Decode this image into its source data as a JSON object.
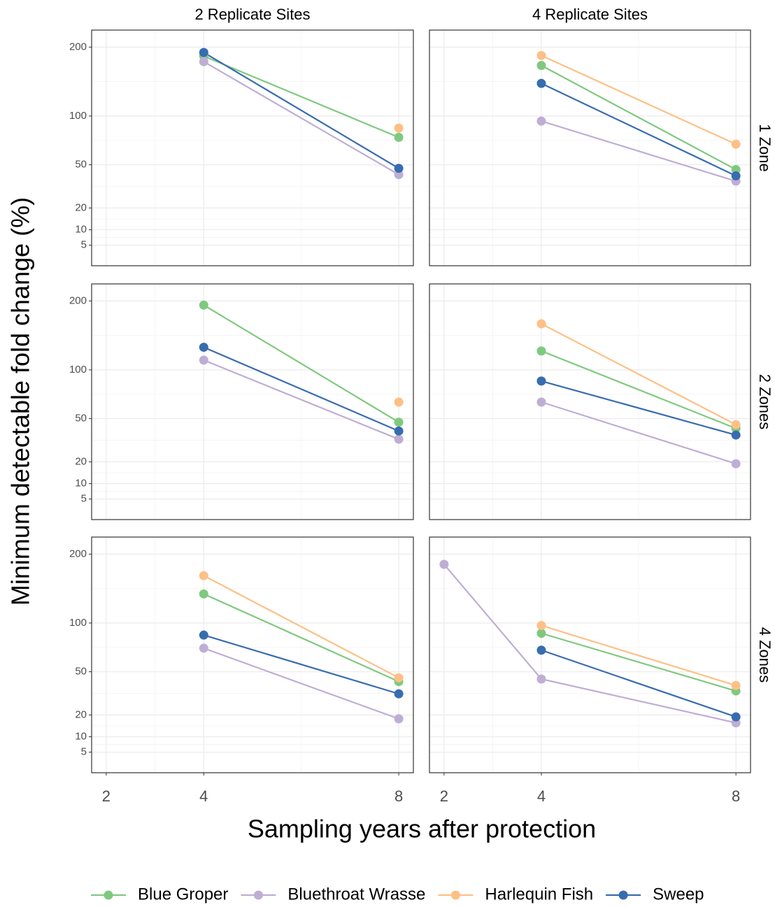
{
  "chart_data": {
    "type": "line",
    "xlabel": "Sampling years after protection",
    "ylabel": "Minimum detectable fold change (%)",
    "columns": [
      "2 Replicate Sites",
      "4 Replicate Sites"
    ],
    "rows": [
      "1 Zone",
      "2 Zones",
      "4 Zones"
    ],
    "x": [
      2,
      4,
      8
    ],
    "xlim": [
      1.7,
      8.3
    ],
    "xticks": [
      2,
      4,
      8
    ],
    "ylim": [
      1,
      230
    ],
    "yticks": [
      5,
      10,
      20,
      50,
      100,
      200
    ],
    "yscale": "sqrt",
    "grid": true,
    "legend": "bottom",
    "series": [
      {
        "name": "Blue Groper",
        "color": "#7fc97f"
      },
      {
        "name": "Bluethroat Wrasse",
        "color": "#beaed4"
      },
      {
        "name": "Harlequin Fish",
        "color": "#fdc086"
      },
      {
        "name": "Sweep",
        "color": "#386cb0"
      }
    ],
    "panels": [
      {
        "series": [
          {
            "values": [
              null,
              185,
              76
            ]
          },
          {
            "values": [
              null,
              176,
              42
            ]
          },
          {
            "values": [
              null,
              null,
              86
            ]
          },
          {
            "values": [
              null,
              191,
              47
            ]
          }
        ]
      },
      {
        "series": [
          {
            "values": [
              null,
              170,
              46
            ]
          },
          {
            "values": [
              null,
              94,
              37
            ]
          },
          {
            "values": [
              null,
              186,
              69
            ]
          },
          {
            "values": [
              null,
              143,
              41
            ]
          }
        ]
      },
      {
        "series": [
          {
            "values": [
              null,
              193,
              47
            ]
          },
          {
            "values": [
              null,
              112,
              34
            ]
          },
          {
            "values": [
              null,
              null,
              65
            ]
          },
          {
            "values": [
              null,
              129,
              40
            ]
          }
        ]
      },
      {
        "series": [
          {
            "values": [
              null,
              124,
              42
            ]
          },
          {
            "values": [
              null,
              65,
              19
            ]
          },
          {
            "values": [
              null,
              163,
              45
            ]
          },
          {
            "values": [
              null,
              87,
              37
            ]
          }
        ]
      },
      {
        "series": [
          {
            "values": [
              null,
              138,
              42
            ]
          },
          {
            "values": [
              null,
              72,
              18
            ]
          },
          {
            "values": [
              null,
              165,
              45
            ]
          },
          {
            "values": [
              null,
              86,
              33
            ]
          }
        ]
      },
      {
        "series": [
          {
            "values": [
              null,
              88,
              35
            ]
          },
          {
            "values": [
              183,
              44,
              16
            ]
          },
          {
            "values": [
              null,
              97,
              39
            ]
          },
          {
            "values": [
              null,
              70,
              19
            ]
          }
        ]
      }
    ]
  }
}
